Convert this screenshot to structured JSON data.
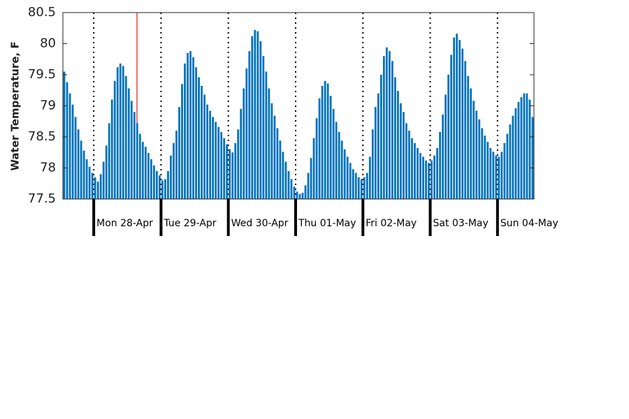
{
  "chart_data": {
    "type": "bar",
    "y_label": "Water Temperature, F",
    "color": "#0072bd",
    "ylim": [
      77.5,
      80.5
    ],
    "yticks": [
      77.5,
      78,
      78.5,
      79,
      79.5,
      80,
      80.5
    ],
    "days": [
      {
        "label": null,
        "values": [
          79.55,
          79.38,
          79.2,
          79.02,
          78.82,
          78.62,
          78.44,
          78.28,
          78.14,
          78.02,
          77.92
        ]
      },
      {
        "label": "Mon 28-Apr",
        "values": [
          77.85,
          77.78,
          77.9,
          78.1,
          78.36,
          78.72,
          79.1,
          79.4,
          79.62,
          79.68,
          79.64,
          79.48,
          79.28,
          79.08,
          78.9,
          78.72,
          78.55,
          78.42,
          78.34,
          78.24,
          78.14,
          78.04,
          77.95,
          77.88
        ]
      },
      {
        "label": "Tue 29-Apr",
        "values": [
          77.8,
          77.82,
          77.95,
          78.2,
          78.4,
          78.6,
          78.98,
          79.35,
          79.68,
          79.85,
          79.88,
          79.78,
          79.62,
          79.46,
          79.32,
          79.18,
          79.02,
          78.92,
          78.82,
          78.74,
          78.66,
          78.58,
          78.48,
          78.38
        ]
      },
      {
        "label": "Wed 30-Apr",
        "values": [
          78.3,
          78.25,
          78.4,
          78.62,
          78.95,
          79.28,
          79.6,
          79.88,
          80.12,
          80.22,
          80.2,
          80.04,
          79.8,
          79.55,
          79.28,
          79.04,
          78.84,
          78.64,
          78.44,
          78.26,
          78.1,
          77.95,
          77.82,
          77.7
        ]
      },
      {
        "label": "Thu 01-May",
        "values": [
          77.62,
          77.58,
          77.6,
          77.72,
          77.92,
          78.16,
          78.48,
          78.8,
          79.12,
          79.32,
          79.4,
          79.36,
          79.16,
          78.95,
          78.74,
          78.58,
          78.44,
          78.3,
          78.18,
          78.08,
          77.98,
          77.92,
          77.85,
          77.82
        ]
      },
      {
        "label": "Fri 02-May",
        "values": [
          77.85,
          77.92,
          78.18,
          78.62,
          78.98,
          79.2,
          79.5,
          79.8,
          79.94,
          79.88,
          79.72,
          79.46,
          79.24,
          79.04,
          78.9,
          78.72,
          78.6,
          78.48,
          78.4,
          78.32,
          78.24,
          78.18,
          78.12,
          78.08
        ]
      },
      {
        "label": "Sat 03-May",
        "values": [
          78.12,
          78.2,
          78.32,
          78.58,
          78.86,
          79.18,
          79.5,
          79.82,
          80.1,
          80.16,
          80.06,
          79.92,
          79.72,
          79.48,
          79.28,
          79.08,
          78.92,
          78.78,
          78.64,
          78.52,
          78.42,
          78.32,
          78.26,
          78.2
        ]
      },
      {
        "label": "Sun 04-May",
        "values": [
          78.18,
          78.26,
          78.4,
          78.55,
          78.7,
          78.84,
          78.96,
          79.06,
          79.14,
          79.2,
          79.2,
          79.1,
          78.82
        ]
      }
    ]
  }
}
